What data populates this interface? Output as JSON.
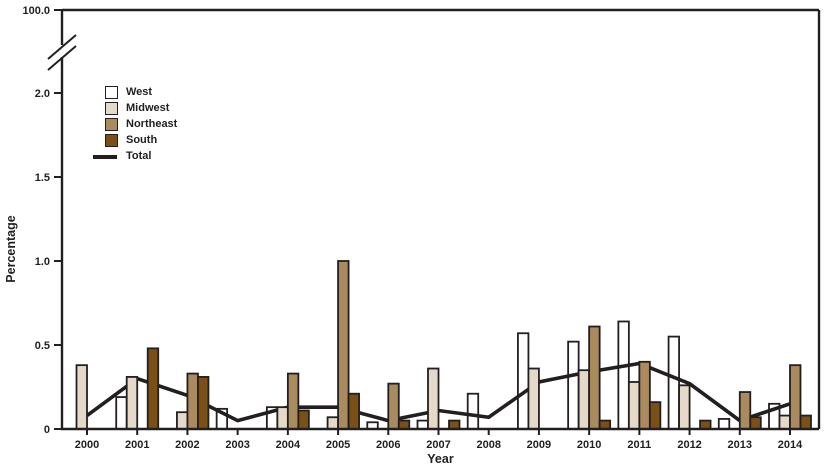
{
  "figure": {
    "background": "#ffffff",
    "text_color": "#231f20",
    "y_axis_title": "Percentage",
    "x_axis_title": "Year",
    "y_axis_break_label": "100.0",
    "y_ticks": [
      {
        "label": "0",
        "value": 0
      },
      {
        "label": "0.5",
        "value": 0.5
      },
      {
        "label": "1.0",
        "value": 1.0
      },
      {
        "label": "1.5",
        "value": 1.5
      },
      {
        "label": "2.0",
        "value": 2.0
      }
    ]
  },
  "chart_data": {
    "type": "bar+line",
    "title": "",
    "xlabel": "Year",
    "ylabel": "Percentage",
    "categories": [
      "2000",
      "2001",
      "2002",
      "2003",
      "2004",
      "2005",
      "2006",
      "2007",
      "2008",
      "2009",
      "2010",
      "2011",
      "2012",
      "2013",
      "2014"
    ],
    "ylim": [
      0,
      2.0
    ],
    "y_axis_break_top_tick": 100.0,
    "grid": false,
    "legend_position": "upper-left inside plot",
    "series": [
      {
        "name": "West",
        "type": "bar",
        "color": "#ffffff",
        "values": [
          0,
          0.19,
          0,
          0.12,
          0.13,
          0,
          0.04,
          0.05,
          0.21,
          0.57,
          0.52,
          0.64,
          0.55,
          0.06,
          0.15
        ]
      },
      {
        "name": "Midwest",
        "type": "bar",
        "color": "#e5dac9",
        "values": [
          0.38,
          0.31,
          0.1,
          0,
          0.13,
          0.07,
          0,
          0.36,
          0,
          0.36,
          0.35,
          0.28,
          0.26,
          0,
          0.08
        ]
      },
      {
        "name": "Northeast",
        "type": "bar",
        "color": "#aa8a5f",
        "values": [
          0,
          0,
          0.33,
          0,
          0.33,
          1.0,
          0.27,
          0,
          0,
          0,
          0.61,
          0.4,
          0,
          0.22,
          0.38
        ]
      },
      {
        "name": "South",
        "type": "bar",
        "color": "#7a5017",
        "values": [
          0,
          0.48,
          0.31,
          0,
          0.11,
          0.21,
          0.05,
          0.05,
          0,
          0,
          0.05,
          0.16,
          0.05,
          0.07,
          0.08
        ]
      },
      {
        "name": "Total",
        "type": "line",
        "color": "#231f20",
        "values": [
          0.08,
          0.3,
          0.2,
          0.05,
          0.13,
          0.13,
          0.05,
          0.11,
          0.07,
          0.28,
          0.34,
          0.39,
          0.27,
          0.05,
          0.15
        ]
      }
    ]
  }
}
